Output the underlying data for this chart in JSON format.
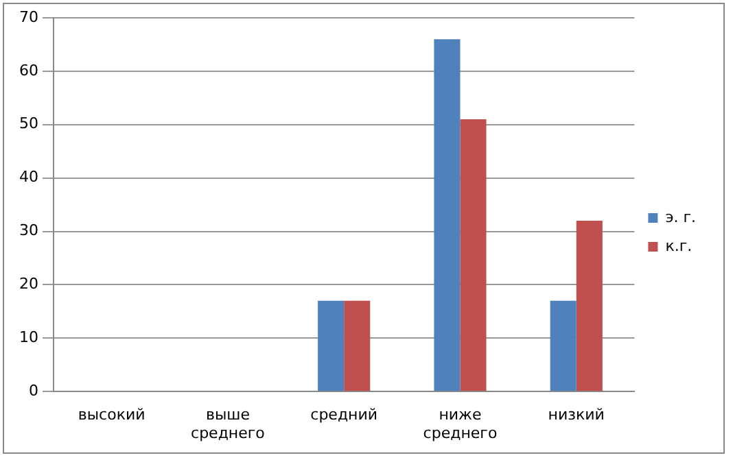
{
  "chart_data": {
    "type": "bar",
    "categories": [
      "высокий",
      "выше среднего",
      "средний",
      "ниже среднего",
      "низкий"
    ],
    "series": [
      {
        "name": "э. г.",
        "color": "#4f81bd",
        "values": [
          0,
          0,
          17,
          66,
          17
        ]
      },
      {
        "name": "к.г.",
        "color": "#c0504d",
        "values": [
          0,
          0,
          17,
          51,
          32
        ]
      }
    ],
    "ylim": [
      0,
      70
    ],
    "yticks": [
      0,
      10,
      20,
      30,
      40,
      50,
      60,
      70
    ],
    "grid": "y",
    "legend": "right"
  }
}
